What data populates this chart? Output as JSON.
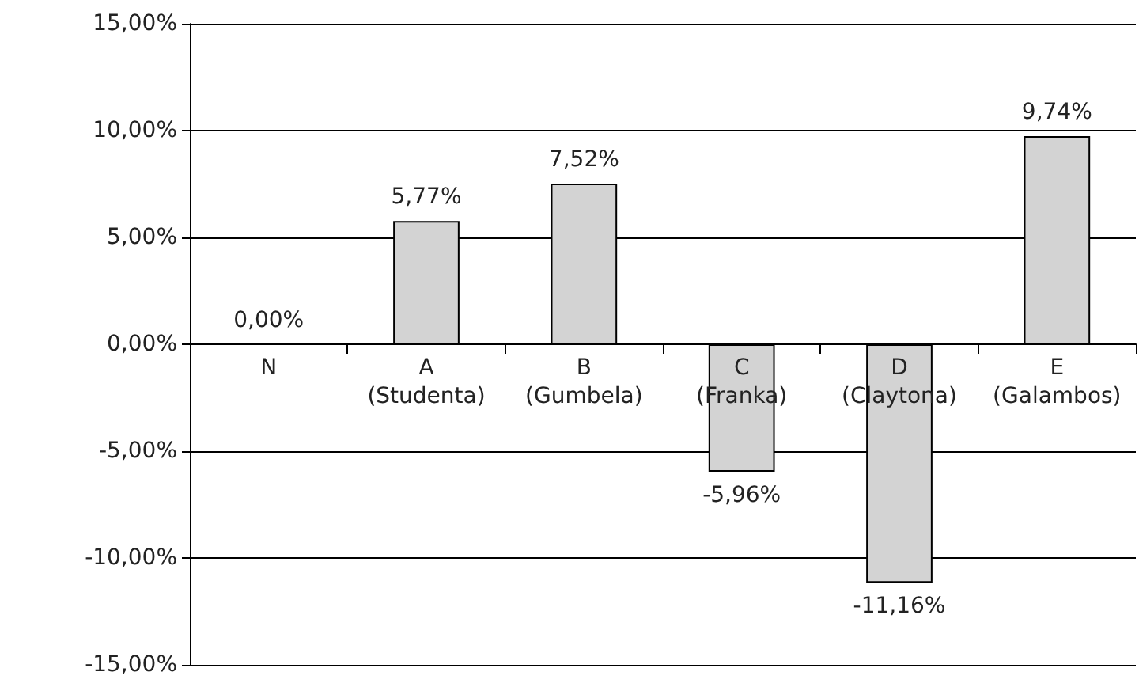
{
  "chart_data": {
    "type": "bar",
    "categories": [
      "N",
      "A\n(Studenta)",
      "B\n(Gumbela)",
      "C\n(Franka)",
      "D\n(Claytona)",
      "E\n(Galambos)"
    ],
    "values": [
      0,
      5.77,
      7.52,
      -5.96,
      -11.16,
      9.74
    ],
    "value_labels": [
      "0,00%",
      "5,77%",
      "7,52%",
      "-5,96%",
      "-11,16%",
      "9,74%"
    ],
    "color": "#d3d3d3",
    "ylim": [
      -15,
      15
    ],
    "yticks": [
      {
        "value": -15,
        "label": "-15,00%"
      },
      {
        "value": -10,
        "label": "-10,00%"
      },
      {
        "value": -5,
        "label": "-5,00%"
      },
      {
        "value": 0,
        "label": "0,00%"
      },
      {
        "value": 5,
        "label": "5,00%"
      },
      {
        "value": 10,
        "label": "10,00%"
      },
      {
        "value": 15,
        "label": "15,00%"
      }
    ],
    "grid": "y"
  }
}
